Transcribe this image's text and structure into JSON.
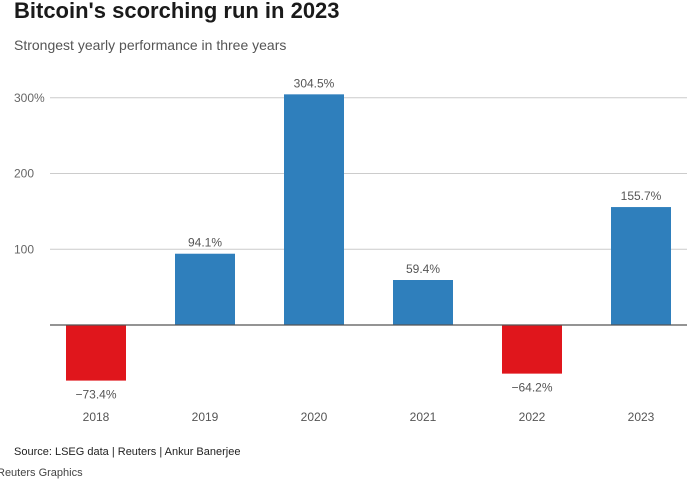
{
  "header": {
    "title": "Bitcoin's scorching run in 2023",
    "subtitle": "Strongest yearly performance in three years"
  },
  "footer": {
    "source": "Source: LSEG data | Reuters | Ankur Banerjee",
    "credit": "Reuters Graphics"
  },
  "chart_data": {
    "type": "bar",
    "title": "Bitcoin's scorching run in 2023",
    "subtitle": "Strongest yearly performance in three years",
    "xlabel": "",
    "ylabel": "",
    "categories": [
      "2018",
      "2019",
      "2020",
      "2021",
      "2022",
      "2023"
    ],
    "values": [
      -73.4,
      94.1,
      304.5,
      59.4,
      -64.2,
      155.7
    ],
    "data_labels": [
      "−73.4%",
      "94.1%",
      "304.5%",
      "59.4%",
      "−64.2%",
      "155.7%"
    ],
    "y_ticks": [
      100,
      200,
      300
    ],
    "y_tick_labels": [
      "100",
      "200",
      "300%"
    ],
    "ylim": [
      -100,
      320
    ],
    "grid": true,
    "colors": {
      "positive": "#2f7fbc",
      "negative": "#e0161c",
      "grid": "#cccccc",
      "zero_line": "#555555"
    }
  }
}
